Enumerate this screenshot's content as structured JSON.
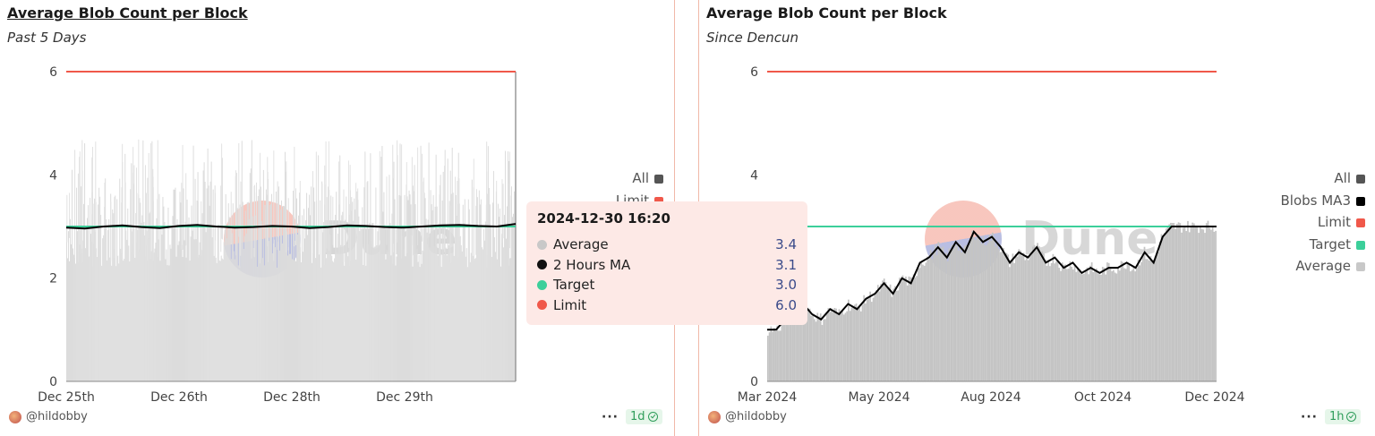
{
  "chart_data": [
    {
      "type": "bar",
      "title": "Average Blob Count per Block",
      "subtitle": "Past 5 Days",
      "ylim": [
        0,
        6
      ],
      "yticks": [
        0,
        2,
        4,
        6
      ],
      "xticks": [
        "Dec 25th",
        "Dec 26th",
        "Dec 28th",
        "Dec 29th"
      ],
      "legend": [
        "All",
        "Limit"
      ],
      "legend_placement": "right",
      "series": [
        {
          "name": "Average",
          "kind": "bar",
          "color": "#c8c8c8",
          "typical": 3.0
        },
        {
          "name": "2 Hours MA",
          "kind": "line",
          "color": "#000000",
          "values": [
            2.98,
            2.96,
            3.0,
            3.02,
            2.99,
            2.97,
            3.01,
            3.03,
            3.0,
            2.98,
            2.99,
            3.01,
            3.0,
            2.97,
            2.99,
            3.02,
            3.01,
            2.99,
            2.98,
            3.0,
            3.02,
            3.03,
            3.01,
            3.0,
            3.05
          ]
        },
        {
          "name": "Target",
          "kind": "line",
          "color": "#3ccf9a",
          "value": 3.0
        },
        {
          "name": "Limit",
          "kind": "line",
          "color": "#f0584a",
          "value": 6.0
        }
      ],
      "tooltip": {
        "title": "2024-12-30 16:20",
        "rows": [
          {
            "label": "Average",
            "value": "3.4",
            "color": "#c8c8c8"
          },
          {
            "label": "2 Hours MA",
            "value": "3.1",
            "color": "#111111"
          },
          {
            "label": "Target",
            "value": "3.0",
            "color": "#3ccf9a"
          },
          {
            "label": "Limit",
            "value": "6.0",
            "color": "#f0584a"
          }
        ]
      },
      "watermark": "Dune",
      "author": "@hildobby",
      "badge": "1d"
    },
    {
      "type": "bar",
      "title": "Average Blob Count per Block",
      "subtitle": "Since Dencun",
      "ylim": [
        0,
        6
      ],
      "yticks": [
        0,
        2,
        4,
        6
      ],
      "xticks": [
        "Mar 2024",
        "May 2024",
        "Aug 2024",
        "Oct 2024",
        "Dec 2024"
      ],
      "legend": [
        "All",
        "Blobs MA3",
        "Limit",
        "Target",
        "Average"
      ],
      "legend_placement": "right",
      "series": [
        {
          "name": "Blobs MA3",
          "kind": "line",
          "color": "#000000",
          "values": [
            1.0,
            1.0,
            1.2,
            1.8,
            1.5,
            1.3,
            1.2,
            1.4,
            1.3,
            1.5,
            1.4,
            1.6,
            1.7,
            1.9,
            1.7,
            2.0,
            1.9,
            2.3,
            2.4,
            2.6,
            2.4,
            2.7,
            2.5,
            2.9,
            2.7,
            2.8,
            2.6,
            2.3,
            2.5,
            2.4,
            2.6,
            2.3,
            2.4,
            2.2,
            2.3,
            2.1,
            2.2,
            2.1,
            2.2,
            2.2,
            2.3,
            2.2,
            2.5,
            2.3,
            2.8,
            3.0,
            3.0,
            3.0,
            3.0,
            3.0,
            3.0
          ]
        },
        {
          "name": "Limit",
          "kind": "line",
          "color": "#f0584a",
          "value": 6.0
        },
        {
          "name": "Target",
          "kind": "line",
          "color": "#3ccf9a",
          "value": 3.0
        },
        {
          "name": "Average",
          "kind": "bar",
          "color": "#c8c8c8"
        }
      ],
      "watermark": "Dune",
      "author": "@hildobby",
      "badge": "1h"
    }
  ],
  "colors": {
    "all": "#555555",
    "limit": "#f0584a",
    "target": "#3ccf9a",
    "ma": "#000000",
    "average": "#c8c8c8"
  }
}
